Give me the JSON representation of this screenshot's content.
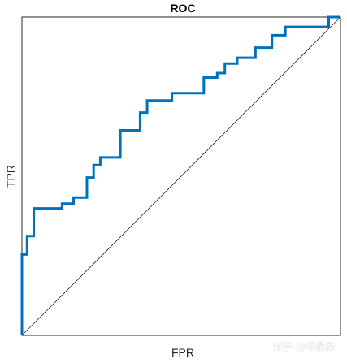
{
  "chart_data": {
    "type": "line",
    "title": "ROC",
    "xlabel": "FPR",
    "ylabel": "TPR",
    "xlim": [
      0,
      1
    ],
    "ylim": [
      0,
      1
    ],
    "grid": false,
    "series": [
      {
        "x": [
          0,
          0,
          0.016,
          0.016,
          0.037,
          0.037,
          0.126,
          0.126,
          0.162,
          0.162,
          0.204,
          0.204,
          0.225,
          0.225,
          0.246,
          0.246,
          0.309,
          0.309,
          0.371,
          0.371,
          0.393,
          0.393,
          0.471,
          0.471,
          0.571,
          0.571,
          0.613,
          0.613,
          0.637,
          0.637,
          0.676,
          0.676,
          0.733,
          0.733,
          0.785,
          0.785,
          0.827,
          0.827,
          0.963,
          0.963,
          1
        ],
        "y": [
          0,
          0.254,
          0.254,
          0.312,
          0.312,
          0.399,
          0.399,
          0.414,
          0.414,
          0.433,
          0.433,
          0.496,
          0.496,
          0.535,
          0.535,
          0.559,
          0.559,
          0.644,
          0.644,
          0.7,
          0.7,
          0.738,
          0.738,
          0.761,
          0.761,
          0.81,
          0.81,
          0.824,
          0.824,
          0.854,
          0.854,
          0.872,
          0.872,
          0.904,
          0.904,
          0.943,
          0.943,
          0.969,
          0.969,
          1,
          1
        ],
        "color": "#0072BD"
      }
    ],
    "reference_line": {
      "x": [
        0,
        1
      ],
      "y": [
        0,
        1
      ],
      "color": "#262626"
    }
  },
  "watermark": "知乎 @邓俊泽"
}
